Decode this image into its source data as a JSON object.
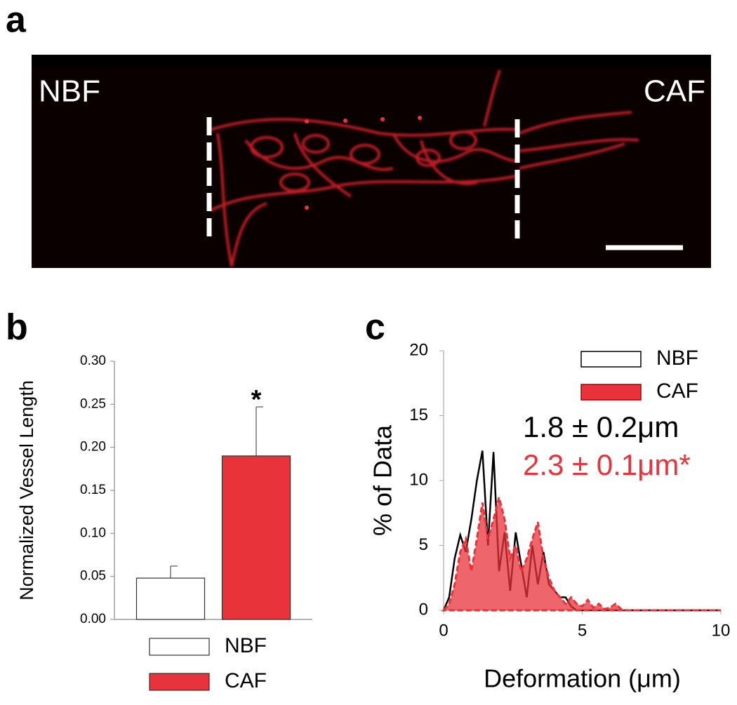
{
  "panel_a": {
    "label": "a",
    "left_label": "NBF",
    "right_label": "CAF"
  },
  "chart_data": [
    {
      "type": "bar",
      "panel_label": "b",
      "ylabel": "Normalized Vessel Length",
      "categories": [
        null
      ],
      "series": [
        {
          "name": "NBF",
          "color": "#ffffff",
          "values": [
            0.048
          ],
          "errors": [
            0.014
          ]
        },
        {
          "name": "CAF",
          "color": "#e8333a",
          "values": [
            0.19
          ],
          "errors": [
            0.057
          ]
        }
      ],
      "annotation": "*",
      "ylim": [
        0,
        0.3
      ],
      "yticks": [
        {
          "value": 0,
          "label": "0.00"
        },
        0.05,
        {
          "value": 0.1,
          "label": "0.10"
        },
        0.15,
        {
          "value": 0.2,
          "label": "0.20"
        },
        0.25,
        {
          "value": 0.3,
          "label": "0.30"
        }
      ],
      "grid": false,
      "legend": "bottom"
    },
    {
      "type": "line",
      "panel_label": "c",
      "xlabel": "Deformation  (μm)",
      "ylabel": "% of Data",
      "x": [
        0,
        0.2,
        0.4,
        0.6,
        0.8,
        1.0,
        1.2,
        1.4,
        1.6,
        1.8,
        2.0,
        2.2,
        2.4,
        2.6,
        2.8,
        3.0,
        3.2,
        3.4,
        3.6,
        3.8,
        4.0,
        4.2,
        4.4,
        4.6,
        4.8,
        5.0,
        5.2,
        5.4,
        5.6,
        5.8,
        6.0,
        6.2,
        6.4,
        6.6,
        10
      ],
      "series": [
        {
          "name": "NBF",
          "color": "#000000",
          "style": "line",
          "values": [
            0,
            1,
            4,
            5.8,
            4.5,
            7,
            10,
            12.3,
            5,
            12.2,
            3,
            6,
            1.5,
            6,
            3.5,
            1,
            5,
            2,
            4.5,
            2,
            1.5,
            1,
            1,
            0.3,
            0,
            0,
            0,
            0,
            0,
            0,
            0,
            0,
            0,
            0,
            0
          ]
        },
        {
          "name": "CAF",
          "color": "#e8333a",
          "style": "area",
          "values": [
            0,
            0.5,
            2,
            4.5,
            5.5,
            3,
            5.5,
            8.3,
            5.5,
            7,
            8.7,
            7,
            4,
            5,
            3,
            4,
            5.5,
            6.8,
            4,
            2.5,
            1.5,
            1,
            0.5,
            1,
            0.5,
            0.3,
            0.8,
            0.2,
            0.5,
            0.1,
            0.2,
            0.5,
            0.1,
            0,
            0
          ]
        }
      ],
      "annotations": [
        {
          "text": "1.8 ± 0.2μm",
          "color": "#000000"
        },
        {
          "text": "2.3 ± 0.1μm*",
          "color": "#e8333a"
        }
      ],
      "xlim": [
        0,
        10
      ],
      "xticks": [
        0,
        5,
        10
      ],
      "ylim": [
        0,
        20
      ],
      "yticks": [
        0,
        5,
        10,
        15,
        20
      ],
      "grid": false,
      "legend": "upper right"
    }
  ]
}
